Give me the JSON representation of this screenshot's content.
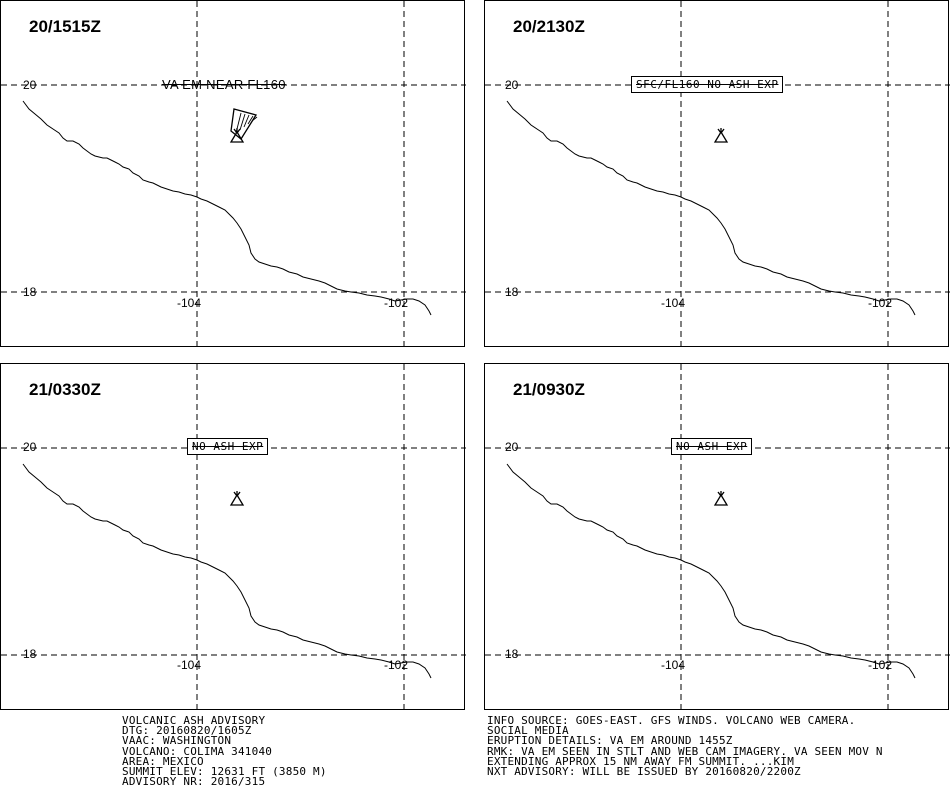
{
  "panels": [
    {
      "time": "20/1515Z",
      "label": "VA EM NEAR FL160",
      "label_style": "plain",
      "ash_cloud": true
    },
    {
      "time": "20/2130Z",
      "label": "SFC/FL160 NO ASH EXP",
      "label_style": "boxed",
      "ash_cloud": false
    },
    {
      "time": "21/0330Z",
      "label": "NO ASH EXP",
      "label_style": "boxed",
      "ash_cloud": false
    },
    {
      "time": "21/0930Z",
      "label": "NO ASH EXP",
      "label_style": "boxed",
      "ash_cloud": false
    }
  ],
  "map": {
    "lat_labels": [
      "20",
      "18"
    ],
    "lon_labels": [
      "-104",
      "-102"
    ],
    "volcano_icon": "volcano-triangle-icon"
  },
  "advisory_left": [
    "VOLCANIC ASH ADVISORY",
    "DTG: 20160820/1605Z",
    "VAAC: WASHINGTON",
    "VOLCANO: COLIMA 341040",
    "AREA: MEXICO",
    "SUMMIT ELEV: 12631 FT (3850 M)",
    "ADVISORY NR: 2016/315"
  ],
  "advisory_right": [
    "INFO SOURCE: GOES-EAST. GFS WINDS. VOLCANO WEB CAMERA.",
    "SOCIAL MEDIA",
    "ERUPTION DETAILS: VA EM AROUND 1455Z",
    "RMK: VA EM SEEN IN STLT AND WEB CAM IMAGERY. VA SEEN MOV N",
    "EXTENDING APPROX 15 NM AWAY FM SUMMIT. ...KIM",
    "NXT ADVISORY: WILL BE ISSUED BY 20160820/2200Z"
  ]
}
